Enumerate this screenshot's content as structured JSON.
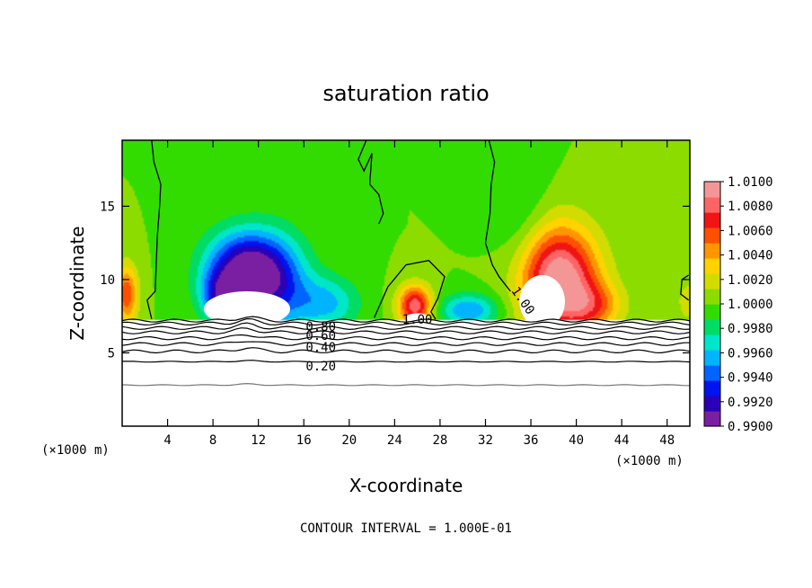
{
  "chart_data": {
    "type": "heatmap",
    "title": "saturation ratio",
    "xlabel": "X-coordinate",
    "ylabel": "Z-coordinate",
    "x_unit": "(×1000 m)",
    "x_unit_right": "(×1000 m)",
    "xlim": [
      0,
      50
    ],
    "ylim": [
      0,
      19.5
    ],
    "x_ticks": [
      4,
      8,
      12,
      16,
      20,
      24,
      28,
      32,
      36,
      40,
      44,
      48
    ],
    "x_tick_labels": [
      "4",
      "8",
      "12",
      "16",
      "20",
      "24",
      "28",
      "32",
      "36",
      "40",
      "44",
      "48"
    ],
    "y_ticks": [
      5,
      10,
      15
    ],
    "y_tick_labels": [
      "5",
      "10",
      "15"
    ],
    "colorbar": {
      "min": 0.99,
      "max": 1.01,
      "labels": [
        "1.0100",
        "1.0080",
        "1.0060",
        "1.0040",
        "1.0020",
        "1.0000",
        "0.9980",
        "0.9960",
        "0.9940",
        "0.9920",
        "0.9900"
      ],
      "colors": [
        "#7a1fa2",
        "#2a00b8",
        "#0014f0",
        "#0064ff",
        "#00b4ff",
        "#00e6c8",
        "#00dc64",
        "#32dc00",
        "#8cdc00",
        "#d2dc00",
        "#ffd200",
        "#ff9600",
        "#ff5000",
        "#f01414",
        "#ff6464",
        "#f59696"
      ]
    },
    "contour_lines": [
      {
        "level": 1.0,
        "label": "1.00"
      },
      {
        "level": 0.8,
        "label": "0.80"
      },
      {
        "level": 0.6,
        "label": "0.60"
      },
      {
        "level": 0.4,
        "label": "0.40"
      },
      {
        "level": 0.2,
        "label": "0.20"
      }
    ],
    "anomalies": [
      {
        "x": 10.5,
        "z": 10.6,
        "amp": -0.009,
        "sx": 3.2,
        "sz": 2.6
      },
      {
        "x": 13.5,
        "z": 9.8,
        "amp": -0.006,
        "sx": 3.0,
        "sz": 3.2
      },
      {
        "x": 18.0,
        "z": 8.4,
        "amp": -0.004,
        "sx": 2.8,
        "sz": 1.8
      },
      {
        "x": 8.5,
        "z": 8.8,
        "amp": -0.005,
        "sx": 1.6,
        "sz": 1.6
      },
      {
        "x": 30.5,
        "z": 7.9,
        "amp": -0.005,
        "sx": 2.6,
        "sz": 1.1
      },
      {
        "x": 35.0,
        "z": 14.5,
        "amp": -0.0015,
        "sx": 2.5,
        "sz": 4.0
      },
      {
        "x": 25.8,
        "z": 8.2,
        "amp": 0.0085,
        "sx": 1.5,
        "sz": 1.4
      },
      {
        "x": 38.5,
        "z": 10.0,
        "amp": 0.0105,
        "sx": 3.4,
        "sz": 3.6
      },
      {
        "x": 41.5,
        "z": 8.2,
        "amp": 0.004,
        "sx": 2.6,
        "sz": 1.6
      },
      {
        "x": 0.4,
        "z": 9.0,
        "amp": 0.006,
        "sx": 1.0,
        "sz": 2.0
      },
      {
        "x": 49.8,
        "z": 8.5,
        "amp": 0.002,
        "sx": 1.0,
        "sz": 1.5
      }
    ],
    "terrain_top_z": 7.2,
    "white_regions": [
      {
        "x": 11.0,
        "z": 8.0,
        "rx": 3.8,
        "rz": 1.2
      },
      {
        "x": 37.0,
        "z": 8.5,
        "rx": 2.0,
        "rz": 1.8
      },
      {
        "x": 26.0,
        "z": 7.4,
        "rx": 1.0,
        "rz": 0.3
      }
    ],
    "grid": false,
    "legend_position": "right"
  },
  "footer": {
    "contour_interval": "CONTOUR INTERVAL = 1.000E-01"
  }
}
